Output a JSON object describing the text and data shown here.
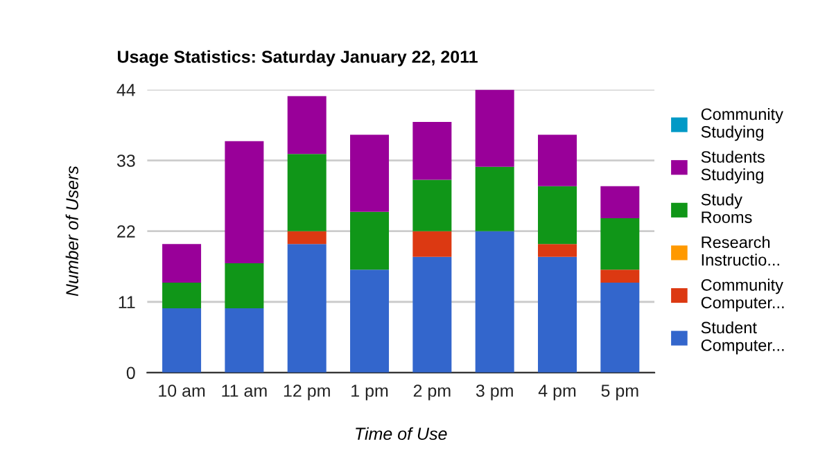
{
  "chart_data": {
    "type": "bar",
    "stacked": true,
    "title": "Usage Statistics: Saturday January 22, 2011",
    "xlabel": "Time of Use",
    "ylabel": "Number of Users",
    "categories": [
      "10 am",
      "11 am",
      "12 pm",
      "1 pm",
      "2 pm",
      "3 pm",
      "4 pm",
      "5 pm"
    ],
    "series": [
      {
        "name": "Student\nComputer...",
        "color": "#3366cc",
        "values": [
          10,
          10,
          20,
          16,
          18,
          22,
          18,
          14
        ]
      },
      {
        "name": "Community\nComputer...",
        "color": "#dc3912",
        "values": [
          0,
          0,
          2,
          0,
          4,
          0,
          2,
          2
        ]
      },
      {
        "name": "Research\nInstructio...",
        "color": "#ff9900",
        "values": [
          0,
          0,
          0,
          0,
          0,
          0,
          0,
          0
        ]
      },
      {
        "name": "Study\nRooms",
        "color": "#109618",
        "values": [
          4,
          7,
          12,
          9,
          8,
          10,
          9,
          8
        ]
      },
      {
        "name": "Students\nStudying",
        "color": "#990099",
        "values": [
          6,
          19,
          9,
          12,
          9,
          12,
          8,
          5
        ]
      },
      {
        "name": "Community\nStudying",
        "color": "#0099c6",
        "values": [
          0,
          0,
          0,
          0,
          0,
          0,
          0,
          0
        ]
      }
    ],
    "ylim": [
      0,
      44
    ],
    "yticks": [
      0,
      11,
      22,
      33,
      44
    ],
    "grid": "y",
    "legend": "right"
  }
}
